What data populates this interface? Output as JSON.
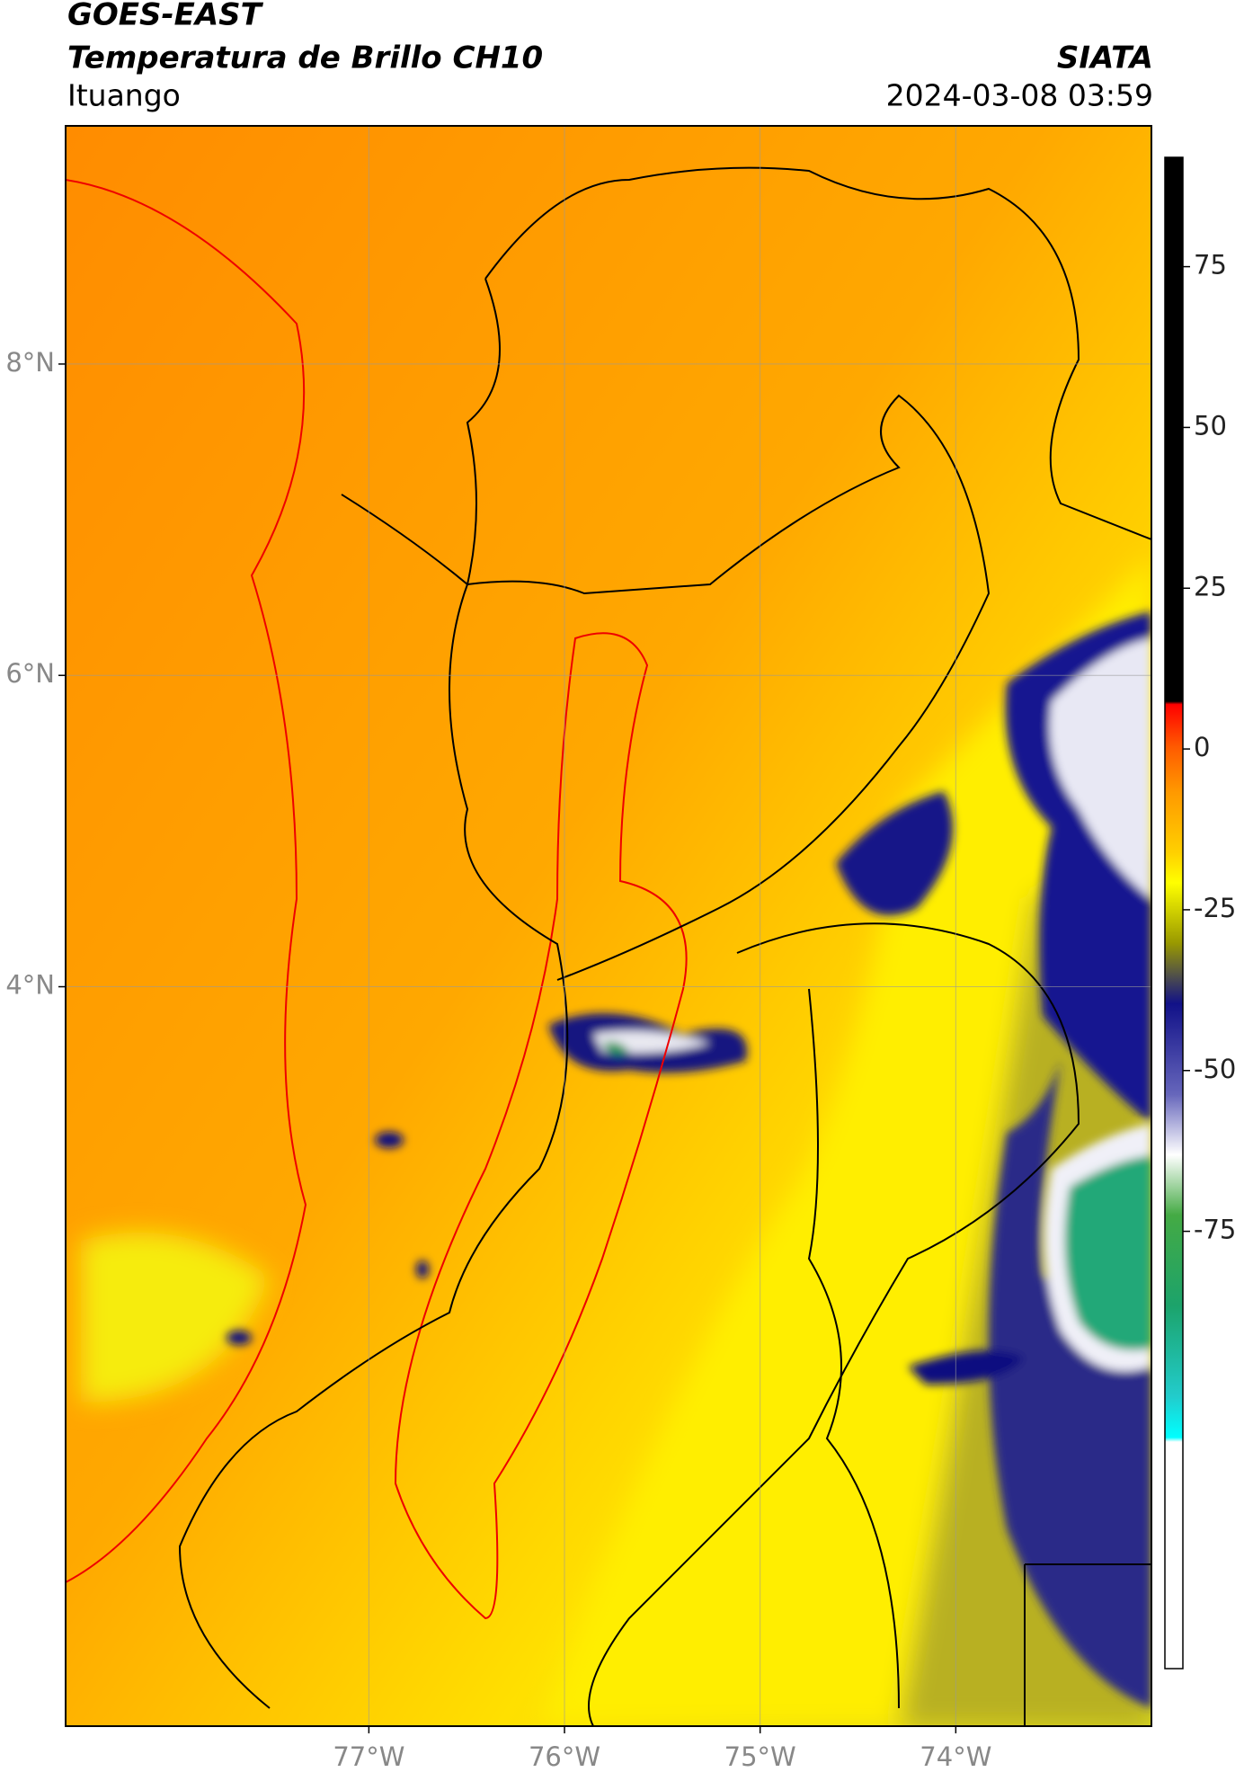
{
  "header": {
    "title": "GOES-EAST",
    "subtitle": "Temperatura de Brillo CH10",
    "source": "SIATA",
    "location": "Ituango",
    "timestamp": "2024-03-08 03:59"
  },
  "map": {
    "xlim": [
      -78.55,
      -73.0
    ],
    "ylim": [
      -0.75,
      9.53
    ],
    "xticks": [
      {
        "value": -77,
        "label": "77°W"
      },
      {
        "value": -76,
        "label": "76°W"
      },
      {
        "value": -75,
        "label": "75°W"
      },
      {
        "value": -74,
        "label": "74°W"
      }
    ],
    "yticks": [
      {
        "value": 8,
        "label": "8°N"
      },
      {
        "value": 6,
        "label": "6°N"
      },
      {
        "value": 4,
        "label": "4°N"
      }
    ],
    "grid": true,
    "colorbar": {
      "lim": [
        -143,
        92
      ],
      "ticks": [
        75,
        50,
        25,
        0,
        -25,
        -50,
        -75
      ]
    }
  }
}
